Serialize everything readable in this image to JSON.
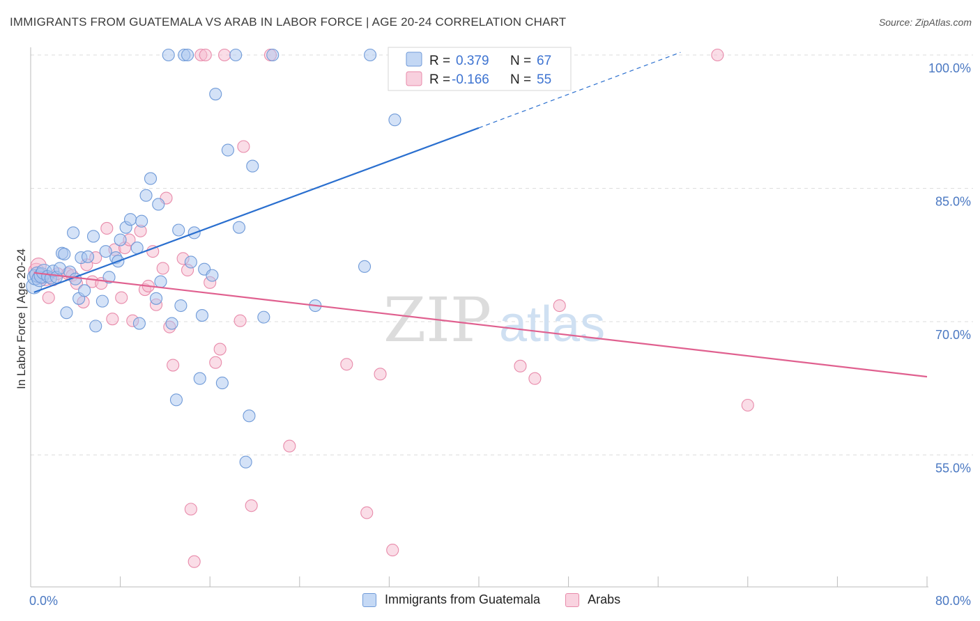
{
  "header": {
    "title": "IMMIGRANTS FROM GUATEMALA VS ARAB IN LABOR FORCE | AGE 20-24 CORRELATION CHART",
    "source": "Source: ZipAtlas.com"
  },
  "watermark": {
    "zip": "ZIP",
    "atlas": "atlas"
  },
  "colors": {
    "blue_fill": "#a9c6f0",
    "blue_stroke": "#6f9ad8",
    "blue_line": "#2a6fcf",
    "pink_fill": "#f5bcd0",
    "pink_stroke": "#e88aaa",
    "pink_line": "#e0608f",
    "tick_text": "#4a78c2",
    "grid": "#dddddd"
  },
  "legend": {
    "rows": [
      {
        "r_label": "R =",
        "r_value": "0.379",
        "n_label": "N =",
        "n_value": "67"
      },
      {
        "r_label": "R =",
        "r_value": "-0.166",
        "n_label": "N =",
        "n_value": "55"
      }
    ]
  },
  "chart_data": {
    "type": "scatter",
    "title": "IMMIGRANTS FROM GUATEMALA VS ARAB IN LABOR FORCE | AGE 20-24 CORRELATION CHART",
    "xlabel": "",
    "ylabel": "In Labor Force | Age 20-24",
    "xlim": [
      0,
      80
    ],
    "ylim": [
      41,
      102
    ],
    "y_ticks": [
      55,
      70,
      85,
      100
    ],
    "y_tick_labels": [
      "55.0%",
      "70.0%",
      "85.0%",
      "100.0%"
    ],
    "x_tick_labels": [
      "0.0%",
      "80.0%"
    ],
    "x_tick_labels_at": [
      0,
      80
    ],
    "grid": true,
    "legend_position": "top-center",
    "series": [
      {
        "name": "Immigrants from Guatemala",
        "R": 0.379,
        "N": 67,
        "trend": {
          "x0": 0.3,
          "y0": 73.3,
          "x1": 40.0,
          "y1": 91.8,
          "dashed_to_x": 58.0,
          "dashed_to_y": 100.3
        },
        "points": [
          [
            0.3,
            74.0
          ],
          [
            0.4,
            75.0
          ],
          [
            0.6,
            75.3
          ],
          [
            0.8,
            74.8
          ],
          [
            1.0,
            75.2
          ],
          [
            1.2,
            75.6
          ],
          [
            1.5,
            75.1
          ],
          [
            1.8,
            74.9
          ],
          [
            2.0,
            75.7
          ],
          [
            2.3,
            75.0
          ],
          [
            2.6,
            76.0
          ],
          [
            2.8,
            77.7
          ],
          [
            3.0,
            77.6
          ],
          [
            3.2,
            71.0
          ],
          [
            3.5,
            75.6
          ],
          [
            3.8,
            80.0
          ],
          [
            4.0,
            74.8
          ],
          [
            4.3,
            72.6
          ],
          [
            4.5,
            77.2
          ],
          [
            4.8,
            73.5
          ],
          [
            5.1,
            77.3
          ],
          [
            5.6,
            79.6
          ],
          [
            5.8,
            69.5
          ],
          [
            6.4,
            72.3
          ],
          [
            6.7,
            77.9
          ],
          [
            7.0,
            75.0
          ],
          [
            7.6,
            77.2
          ],
          [
            7.8,
            76.8
          ],
          [
            8.0,
            79.2
          ],
          [
            8.5,
            80.6
          ],
          [
            8.9,
            81.5
          ],
          [
            9.5,
            78.3
          ],
          [
            9.9,
            81.3
          ],
          [
            10.3,
            84.2
          ],
          [
            10.7,
            86.1
          ],
          [
            11.2,
            72.6
          ],
          [
            11.4,
            83.2
          ],
          [
            11.6,
            74.5
          ],
          [
            12.3,
            100.0
          ],
          [
            13.0,
            61.2
          ],
          [
            13.2,
            80.3
          ],
          [
            13.4,
            71.8
          ],
          [
            13.7,
            100.0
          ],
          [
            14.0,
            100.0
          ],
          [
            14.3,
            76.7
          ],
          [
            14.6,
            80.0
          ],
          [
            15.1,
            63.6
          ],
          [
            15.3,
            70.7
          ],
          [
            15.5,
            75.9
          ],
          [
            16.2,
            75.2
          ],
          [
            16.5,
            95.6
          ],
          [
            17.1,
            63.1
          ],
          [
            17.6,
            89.3
          ],
          [
            18.3,
            100.0
          ],
          [
            18.6,
            80.6
          ],
          [
            19.2,
            54.2
          ],
          [
            19.8,
            87.5
          ],
          [
            19.5,
            59.4
          ],
          [
            20.8,
            70.5
          ],
          [
            21.6,
            100.0
          ],
          [
            25.4,
            71.8
          ],
          [
            29.8,
            76.2
          ],
          [
            30.3,
            100.0
          ],
          [
            32.5,
            92.7
          ],
          [
            34.3,
            100.0
          ],
          [
            12.6,
            69.8
          ],
          [
            9.7,
            69.8
          ]
        ]
      },
      {
        "name": "Arabs",
        "R": -0.166,
        "N": 55,
        "trend": {
          "x0": 0.3,
          "y0": 75.5,
          "x1": 80.0,
          "y1": 63.8
        },
        "points": [
          [
            0.5,
            75.7
          ],
          [
            0.7,
            76.3
          ],
          [
            1.3,
            74.9
          ],
          [
            1.6,
            72.7
          ],
          [
            2.0,
            74.7
          ],
          [
            2.4,
            75.4
          ],
          [
            3.3,
            75.4
          ],
          [
            3.7,
            75.2
          ],
          [
            4.1,
            74.3
          ],
          [
            4.7,
            72.2
          ],
          [
            5.0,
            76.4
          ],
          [
            5.5,
            74.5
          ],
          [
            5.8,
            77.2
          ],
          [
            6.3,
            74.3
          ],
          [
            6.8,
            80.5
          ],
          [
            7.3,
            70.3
          ],
          [
            7.5,
            78.1
          ],
          [
            8.1,
            72.7
          ],
          [
            8.4,
            78.3
          ],
          [
            8.8,
            79.2
          ],
          [
            9.1,
            70.1
          ],
          [
            9.8,
            80.2
          ],
          [
            10.2,
            73.6
          ],
          [
            10.5,
            74.0
          ],
          [
            10.9,
            77.9
          ],
          [
            11.2,
            71.9
          ],
          [
            11.8,
            76.0
          ],
          [
            12.1,
            83.9
          ],
          [
            12.4,
            69.4
          ],
          [
            12.7,
            65.1
          ],
          [
            13.6,
            77.1
          ],
          [
            14.0,
            75.8
          ],
          [
            14.3,
            48.9
          ],
          [
            14.6,
            43.0
          ],
          [
            15.2,
            100.0
          ],
          [
            15.6,
            100.0
          ],
          [
            16.0,
            74.4
          ],
          [
            16.5,
            65.4
          ],
          [
            16.9,
            66.9
          ],
          [
            17.3,
            100.0
          ],
          [
            18.7,
            70.1
          ],
          [
            19.0,
            89.7
          ],
          [
            19.7,
            49.3
          ],
          [
            21.4,
            100.0
          ],
          [
            23.1,
            56.0
          ],
          [
            28.2,
            65.2
          ],
          [
            30.0,
            48.5
          ],
          [
            31.2,
            64.1
          ],
          [
            32.3,
            44.3
          ],
          [
            43.7,
            65.0
          ],
          [
            45.0,
            63.6
          ],
          [
            47.2,
            71.8
          ],
          [
            61.3,
            100.0
          ],
          [
            64.0,
            60.6
          ],
          [
            0.9,
            75.1
          ]
        ]
      }
    ]
  },
  "bottom_legend": {
    "items": [
      {
        "label": "Immigrants from Guatemala"
      },
      {
        "label": "Arabs"
      }
    ]
  }
}
